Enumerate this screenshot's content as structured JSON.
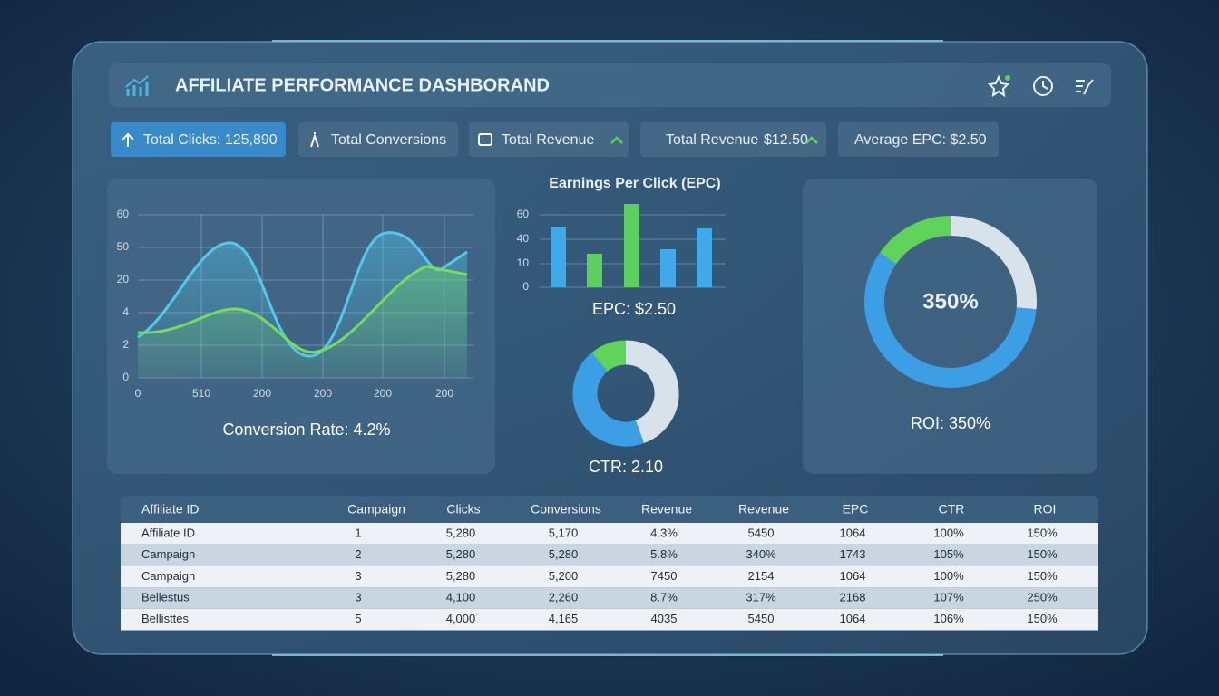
{
  "header": {
    "title": "AFFILIATE PERFORMANCE DASHBORAND"
  },
  "kpis": [
    {
      "label": "Total Clicks: 125,890"
    },
    {
      "label": "Total Conversions"
    },
    {
      "label": "Total Revenue"
    },
    {
      "label": "Total Revenue",
      "value": "$12.50"
    },
    {
      "label": "Average EPC: $2.50"
    }
  ],
  "line_panel": {
    "y_labels": [
      "60",
      "50",
      "20",
      "4",
      "2",
      "0"
    ],
    "x_labels": [
      "0",
      "510",
      "200",
      "200",
      "200",
      "200"
    ],
    "caption": "Conversion Rate: 4.2%"
  },
  "epc_panel": {
    "title": "Earnings Per Click (EPC)",
    "y_labels": [
      "60",
      "40",
      "10",
      "0"
    ],
    "caption": "EPC: $2.50"
  },
  "ctr_panel": {
    "caption": "CTR: 2.10"
  },
  "roi_panel": {
    "center": "350%",
    "caption": "ROI: 350%"
  },
  "table": {
    "header": [
      "Affiliate ID",
      "Campaign",
      "Clicks",
      "Conversions",
      "Revenue",
      "Revenue",
      "EPC",
      "CTR",
      "ROI"
    ],
    "rows": [
      [
        "Affiliate ID",
        "1",
        "5,280",
        "5,170",
        "4.3%",
        "5450",
        "1064",
        "100%",
        "150%"
      ],
      [
        "Campaign",
        "2",
        "5,280",
        "5,280",
        "5.8%",
        "340%",
        "1743",
        "105%",
        "150%"
      ],
      [
        "Campaign",
        "3",
        "5,280",
        "5,200",
        "7450",
        "2154",
        "1064",
        "100%",
        "150%"
      ],
      [
        "Bellestus",
        "3",
        "4,100",
        "2,260",
        "8.7%",
        "317%",
        "2168",
        "107%",
        "250%"
      ],
      [
        "Bellisttes",
        "5",
        "4,000",
        "4,165",
        "4035",
        "5450",
        "1064",
        "106%",
        "150%"
      ]
    ]
  }
}
